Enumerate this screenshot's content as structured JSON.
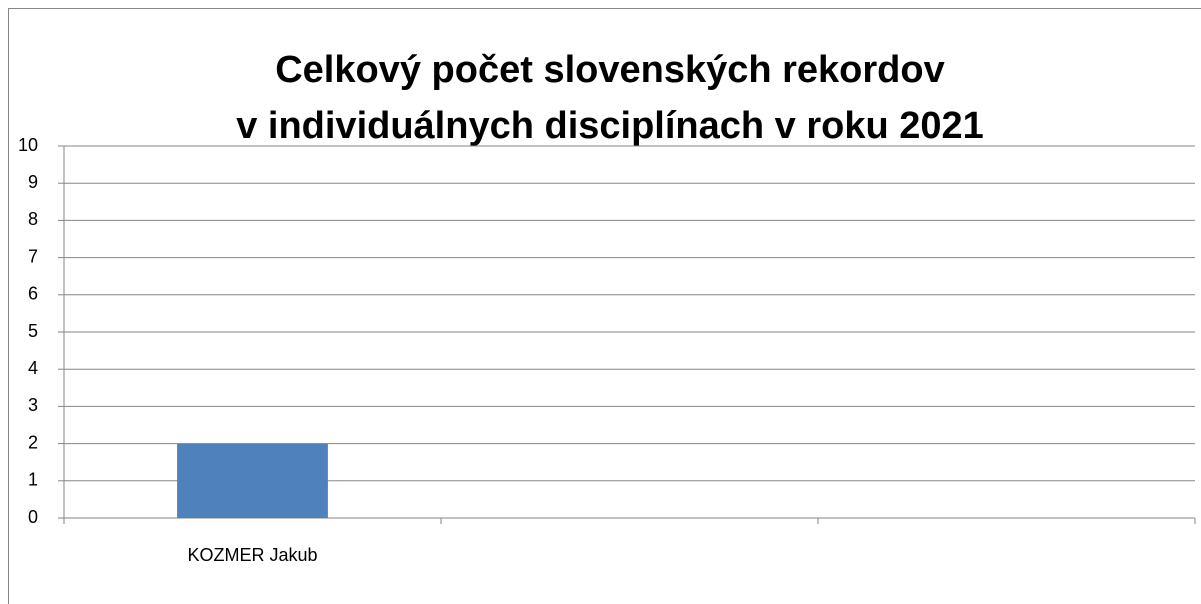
{
  "chart_data": {
    "type": "bar",
    "title": [
      "Celkový počet slovenských rekordov",
      "v individuálnych disciplínach v roku 2021"
    ],
    "categories": [
      "KOZMER Jakub",
      null,
      null
    ],
    "values": [
      2,
      null,
      null
    ],
    "color": "#4f81bd",
    "ylim": [
      0,
      10
    ],
    "yticks": [
      0,
      1,
      2,
      3,
      4,
      5,
      6,
      7,
      8,
      9,
      10
    ],
    "grid": true
  }
}
